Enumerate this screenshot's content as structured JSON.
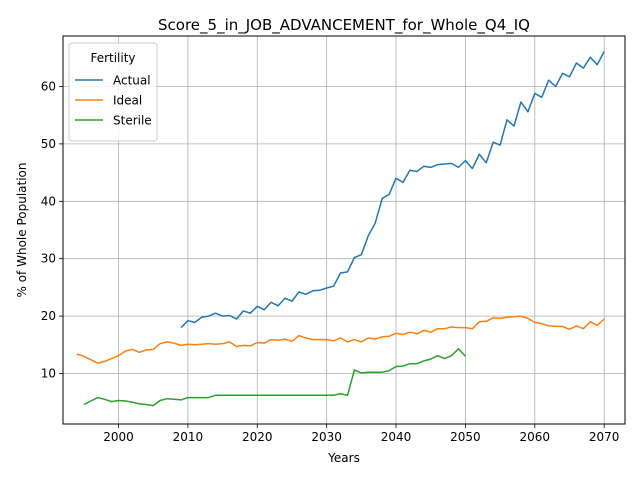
{
  "chart_data": {
    "type": "line",
    "title": "Score_5_in_JOB_ADVANCEMENT_for_Whole_Q4_IQ",
    "xlabel": "Years",
    "ylabel": "% of Whole Population",
    "xlim": [
      1992,
      2073
    ],
    "ylim": [
      1.2,
      68.8
    ],
    "xticks": [
      2000,
      2010,
      2020,
      2030,
      2040,
      2050,
      2060,
      2070
    ],
    "yticks": [
      10,
      20,
      30,
      40,
      50,
      60
    ],
    "grid": true,
    "legend": {
      "title": "Fertility",
      "placement": "upper-left"
    },
    "series": [
      {
        "name": "Actual",
        "color": "#1f77b4",
        "x": [
          2009,
          2010,
          2011,
          2012,
          2013,
          2014,
          2015,
          2016,
          2017,
          2018,
          2019,
          2020,
          2021,
          2022,
          2023,
          2024,
          2025,
          2026,
          2027,
          2028,
          2029,
          2030,
          2031,
          2032,
          2033,
          2034,
          2035,
          2036,
          2037,
          2038,
          2039,
          2040,
          2041,
          2042,
          2043,
          2044,
          2045,
          2046,
          2047,
          2048,
          2049,
          2050,
          2051,
          2052,
          2053,
          2054,
          2055,
          2056,
          2057,
          2058,
          2059,
          2060,
          2061,
          2062,
          2063,
          2064,
          2065,
          2066,
          2067,
          2068,
          2069,
          2070
        ],
        "values": [
          18.0,
          19.2,
          18.9,
          19.8,
          20.0,
          20.5,
          20.0,
          20.1,
          19.5,
          20.9,
          20.5,
          21.7,
          21.1,
          22.4,
          21.8,
          23.1,
          22.6,
          24.2,
          23.8,
          24.4,
          24.5,
          24.9,
          25.2,
          27.5,
          27.7,
          30.2,
          30.7,
          34.0,
          36.2,
          40.5,
          41.2,
          44.0,
          43.3,
          45.4,
          45.2,
          46.1,
          45.9,
          46.4,
          46.5,
          46.6,
          45.9,
          47.1,
          45.7,
          48.2,
          46.7,
          50.3,
          49.8,
          54.2,
          53.1,
          57.3,
          55.6,
          58.8,
          58.1,
          61.1,
          60.0,
          62.3,
          61.7,
          64.1,
          63.2,
          65.1,
          63.8,
          66.1
        ]
      },
      {
        "name": "Ideal",
        "color": "#ff7f0e",
        "x": [
          1994,
          1995,
          1996,
          1997,
          1998,
          1999,
          2000,
          2001,
          2002,
          2003,
          2004,
          2005,
          2006,
          2007,
          2008,
          2009,
          2010,
          2011,
          2012,
          2013,
          2014,
          2015,
          2016,
          2017,
          2018,
          2019,
          2020,
          2021,
          2022,
          2023,
          2024,
          2025,
          2026,
          2027,
          2028,
          2029,
          2030,
          2031,
          2032,
          2033,
          2034,
          2035,
          2036,
          2037,
          2038,
          2039,
          2040,
          2041,
          2042,
          2043,
          2044,
          2045,
          2046,
          2047,
          2048,
          2049,
          2050,
          2051,
          2052,
          2053,
          2054,
          2055,
          2056,
          2057,
          2058,
          2059,
          2060,
          2061,
          2062,
          2063,
          2064,
          2065,
          2066,
          2067,
          2068,
          2069,
          2070
        ],
        "values": [
          13.4,
          13.0,
          12.4,
          11.8,
          12.1,
          12.6,
          13.1,
          13.9,
          14.2,
          13.7,
          14.1,
          14.2,
          15.2,
          15.5,
          15.3,
          14.9,
          15.1,
          15.0,
          15.1,
          15.2,
          15.1,
          15.2,
          15.5,
          14.7,
          14.9,
          14.8,
          15.4,
          15.3,
          15.9,
          15.8,
          16.0,
          15.6,
          16.6,
          16.2,
          15.9,
          15.9,
          15.9,
          15.7,
          16.2,
          15.5,
          15.9,
          15.5,
          16.2,
          16.0,
          16.4,
          16.5,
          17.0,
          16.8,
          17.2,
          16.9,
          17.5,
          17.2,
          17.8,
          17.8,
          18.1,
          18.0,
          18.0,
          17.8,
          19.0,
          19.1,
          19.7,
          19.6,
          19.8,
          19.9,
          20.0,
          19.6,
          18.9,
          18.7,
          18.3,
          18.2,
          18.2,
          17.7,
          18.3,
          17.8,
          19.0,
          18.4,
          19.5
        ]
      },
      {
        "name": "Sterile",
        "color": "#2ca02c",
        "x": [
          1995,
          1996,
          1997,
          1998,
          1999,
          2000,
          2001,
          2002,
          2003,
          2004,
          2005,
          2006,
          2007,
          2008,
          2009,
          2010,
          2011,
          2012,
          2013,
          2014,
          2015,
          2016,
          2017,
          2018,
          2019,
          2020,
          2021,
          2022,
          2023,
          2024,
          2025,
          2026,
          2027,
          2028,
          2029,
          2030,
          2031,
          2032,
          2033,
          2034,
          2035,
          2036,
          2037,
          2038,
          2039,
          2040,
          2041,
          2042,
          2043,
          2044,
          2045,
          2046,
          2047,
          2048,
          2049,
          2050
        ],
        "values": [
          4.6,
          5.2,
          5.8,
          5.5,
          5.1,
          5.3,
          5.2,
          5.0,
          4.7,
          4.6,
          4.4,
          5.3,
          5.6,
          5.5,
          5.4,
          5.8,
          5.8,
          5.8,
          5.8,
          6.2,
          6.2,
          6.2,
          6.2,
          6.2,
          6.2,
          6.2,
          6.2,
          6.2,
          6.2,
          6.2,
          6.2,
          6.2,
          6.2,
          6.2,
          6.2,
          6.2,
          6.2,
          6.5,
          6.2,
          10.6,
          10.1,
          10.2,
          10.2,
          10.2,
          10.5,
          11.2,
          11.3,
          11.7,
          11.7,
          12.2,
          12.5,
          13.1,
          12.6,
          13.1,
          14.3,
          13.0
        ]
      }
    ]
  }
}
